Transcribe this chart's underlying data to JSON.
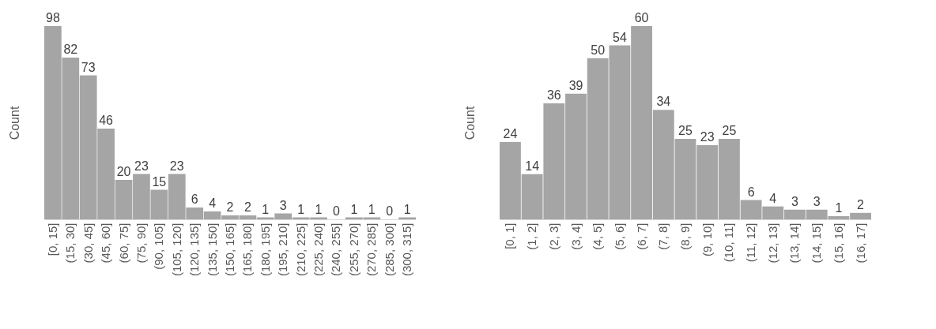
{
  "chart_data": [
    {
      "type": "bar",
      "ylabel": "Count",
      "categories": [
        "[0, 15]",
        "(15, 30]",
        "(30, 45]",
        "(45, 60]",
        "(60, 75]",
        "(75, 90]",
        "(90, 105]",
        "(105, 120]",
        "(120, 135]",
        "(135, 150]",
        "(150, 165]",
        "(165, 180]",
        "(180, 195]",
        "(195, 210]",
        "(210, 225]",
        "(225, 240]",
        "(240, 255]",
        "(255, 270]",
        "(270, 285]",
        "(285, 300]",
        "(300, 315]"
      ],
      "values": [
        98,
        82,
        73,
        46,
        20,
        23,
        15,
        23,
        6,
        4,
        2,
        2,
        1,
        3,
        1,
        1,
        0,
        1,
        1,
        0,
        1
      ],
      "color": "#a5a5a5",
      "data_labels": true,
      "tick_labels": "x"
    },
    {
      "type": "bar",
      "ylabel": "Count",
      "categories": [
        "[0, 1]",
        "(1, 2]",
        "(2, 3]",
        "(3, 4]",
        "(4, 5]",
        "(5, 6]",
        "(6, 7]",
        "(7, 8]",
        "(8, 9]",
        "(9, 10]",
        "(10, 11]",
        "(11, 12]",
        "(12, 13]",
        "(13, 14]",
        "(14, 15]",
        "(15, 16]",
        "(16, 17]"
      ],
      "values": [
        24,
        14,
        36,
        39,
        50,
        54,
        60,
        34,
        25,
        23,
        25,
        6,
        4,
        3,
        3,
        1,
        2
      ],
      "color": "#a5a5a5",
      "data_labels": true,
      "tick_labels": "x"
    }
  ]
}
